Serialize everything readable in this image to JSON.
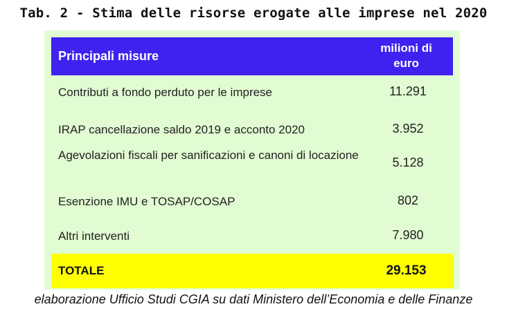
{
  "title": "Tab. 2 - Stima delle risorse erogate alle imprese nel 2020",
  "table": {
    "header": {
      "measure": "Principali misure",
      "unit_line1": "milioni di",
      "unit_line2": "euro"
    },
    "rows": [
      {
        "label": "Contributi a fondo perduto per le imprese",
        "value": "11.291"
      },
      {
        "label": "IRAP cancellazione saldo 2019 e acconto 2020",
        "value": "3.952"
      },
      {
        "label": "Agevolazioni fiscali per sanificazioni e canoni di locazione",
        "value": "5.128"
      },
      {
        "label": "Esenzione IMU e TOSAP/COSAP",
        "value": "802"
      },
      {
        "label": "Altri interventi",
        "value": "7.980"
      }
    ],
    "total": {
      "label": "TOTALE",
      "value": "29.153"
    }
  },
  "footer": "elaborazione Ufficio Studi CGIA su dati Ministero dell’Economia e delle Finanze",
  "colors": {
    "header_bg": "#3f22f0",
    "panel_bg": "#e1fbd3",
    "total_bg": "#ffff00"
  }
}
